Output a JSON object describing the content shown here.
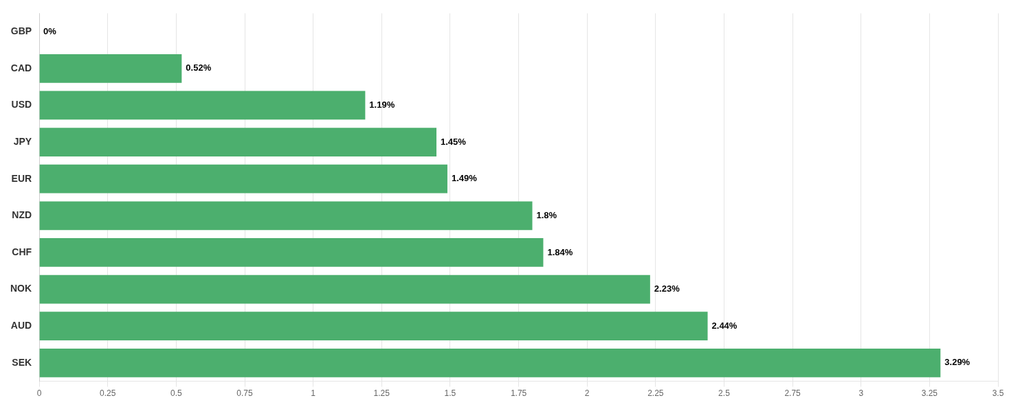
{
  "chart_data": {
    "type": "bar",
    "orientation": "horizontal",
    "categories": [
      "GBP",
      "CAD",
      "USD",
      "JPY",
      "EUR",
      "NZD",
      "CHF",
      "NOK",
      "AUD",
      "SEK"
    ],
    "values": [
      0.0,
      0.52,
      1.19,
      1.45,
      1.49,
      1.8,
      1.84,
      2.23,
      2.44,
      3.29
    ],
    "value_labels": [
      "0%",
      "0.52%",
      "1.19%",
      "1.45%",
      "1.49%",
      "1.8%",
      "1.84%",
      "2.23%",
      "2.44%",
      "3.29%"
    ],
    "data_labels": true,
    "color": "#4caf6e",
    "xlim": [
      0,
      3.5
    ],
    "xticks": [
      0,
      0.25,
      0.5,
      0.75,
      1,
      1.25,
      1.5,
      1.75,
      2,
      2.25,
      2.5,
      2.75,
      3,
      3.25,
      3.5
    ],
    "grid": true
  }
}
